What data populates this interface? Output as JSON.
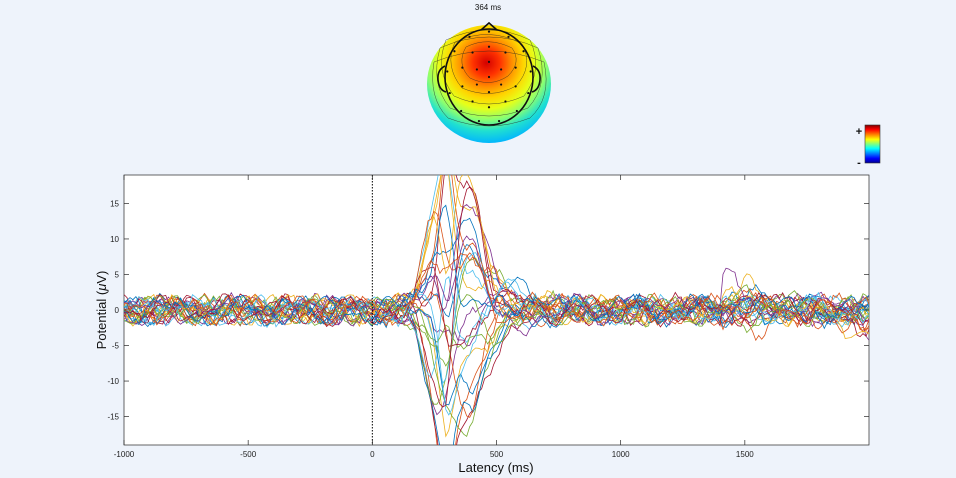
{
  "figure": {
    "background": "#eef3fb"
  },
  "chart_data": [
    {
      "type": "topographic-map",
      "title": "364 ms",
      "colormap": "jet",
      "colors": [
        "#00008f",
        "#0000ff",
        "#00ffff",
        "#ffff00",
        "#ff0000",
        "#800000"
      ],
      "colorbar": {
        "max_label": "+",
        "min_label": "-"
      },
      "peak_region": "frontal-central (red)",
      "electrode_count": 30
    },
    {
      "type": "line",
      "title": "",
      "xlabel": "Latency (ms)",
      "ylabel": "Potential (μV)",
      "ylabel_prefix": "Potential (",
      "ylabel_mu": "μ",
      "ylabel_suffix": "V)",
      "xlim": [
        -1000,
        2000
      ],
      "ylim": [
        -19,
        19
      ],
      "xticks": [
        -1000,
        -500,
        0,
        500,
        1000,
        1500
      ],
      "xtick_labels": [
        "-1000",
        "-500",
        "0",
        "500",
        "1000",
        "1500"
      ],
      "yticks": [
        -15,
        -10,
        -5,
        0,
        5,
        10,
        15
      ],
      "ytick_labels": [
        "-15",
        "-10",
        "-5",
        "0",
        "5",
        "10",
        "15"
      ],
      "grid": false,
      "stimulus_onset_ms": 0,
      "channel_count": 30,
      "series_colors": [
        "#0072bd",
        "#d95319",
        "#edb120",
        "#7e2f8e",
        "#77ac30",
        "#4dbeee",
        "#a2142f"
      ],
      "sample_step_ms": 12,
      "components": [
        {
          "latency_ms": 260,
          "width_ms": 70,
          "amplitude_range_uV": [
            -17,
            15
          ]
        },
        {
          "latency_ms": 300,
          "width_ms": 40,
          "amplitude_range_uV": [
            -16,
            14
          ]
        },
        {
          "latency_ms": 380,
          "width_ms": 90,
          "amplitude_range_uV": [
            -18,
            18
          ]
        },
        {
          "latency_ms": 500,
          "width_ms": 160,
          "amplitude_range_uV": [
            -4,
            4
          ]
        }
      ],
      "baseline_noise_uV": 2,
      "late_drift": {
        "start_ms": 1400,
        "end_ms": 2000,
        "amplitude_range_uV": [
          -8,
          9
        ]
      }
    }
  ]
}
